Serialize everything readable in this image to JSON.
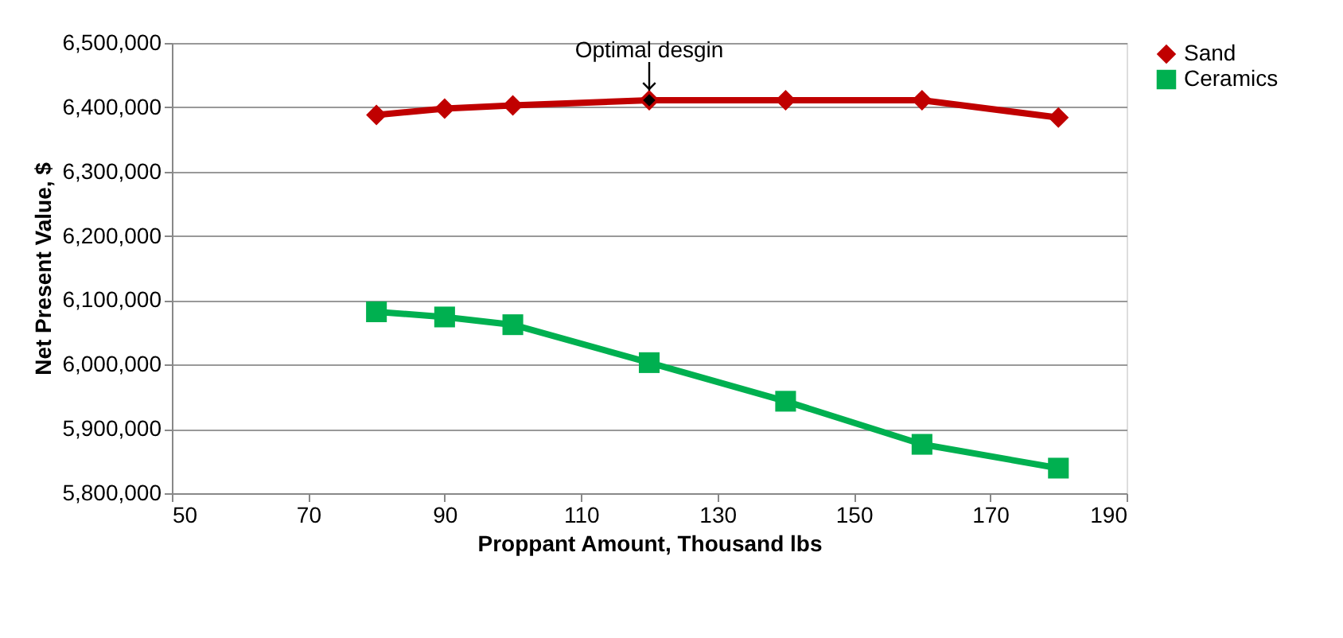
{
  "chart_data": {
    "type": "line",
    "xlabel": "Proppant Amount, Thousand lbs",
    "ylabel": "Net Present Value, $",
    "x": [
      80,
      90,
      100,
      120,
      140,
      160,
      180
    ],
    "series": [
      {
        "name": "Sand",
        "color": "#c00000",
        "marker": "diamond",
        "values": [
          6388000,
          6398000,
          6403000,
          6411000,
          6411000,
          6411000,
          6384000
        ]
      },
      {
        "name": "Ceramics",
        "color": "#00b050",
        "marker": "square",
        "values": [
          6082000,
          6074000,
          6062000,
          6003000,
          5943000,
          5876000,
          5839000
        ]
      }
    ],
    "xlim": [
      50,
      190
    ],
    "xticks": [
      50,
      70,
      90,
      110,
      130,
      150,
      170,
      190
    ],
    "ylim": [
      5800000,
      6500000
    ],
    "yticks": [
      {
        "value": 5800000,
        "label": "5,800,000"
      },
      {
        "value": 5900000,
        "label": "5,900,000"
      },
      {
        "value": 6000000,
        "label": "6,000,000"
      },
      {
        "value": 6100000,
        "label": "6,100,000"
      },
      {
        "value": 6200000,
        "label": "6,200,000"
      },
      {
        "value": 6300000,
        "label": "6,300,000"
      },
      {
        "value": 6400000,
        "label": "6,400,000"
      },
      {
        "value": 6500000,
        "label": "6,500,000"
      }
    ],
    "grid": "y",
    "legend": "right",
    "annotations": [
      {
        "text": "Optimal desgin",
        "x": 120,
        "y": 6411000
      }
    ]
  }
}
